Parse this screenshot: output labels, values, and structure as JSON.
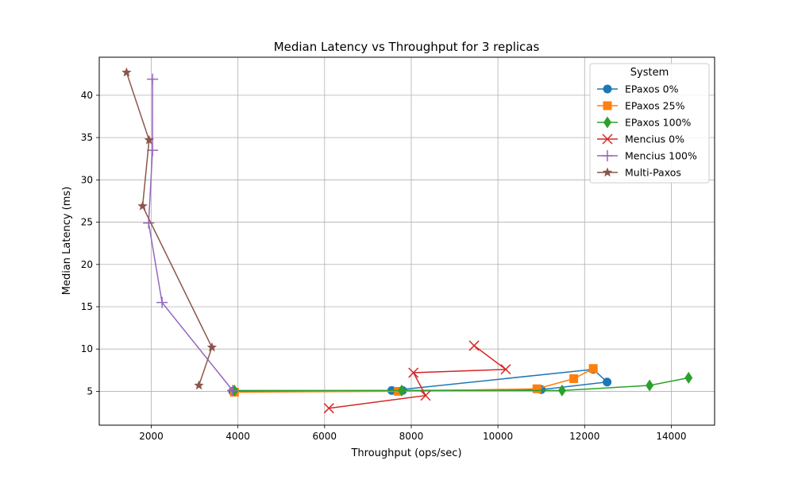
{
  "chart_data": {
    "type": "line",
    "title": "Median Latency vs Throughput for 3 replicas",
    "xlabel": "Throughput (ops/sec)",
    "ylabel": "Median Latency (ms)",
    "xlim": [
      800,
      15000
    ],
    "ylim": [
      1.0,
      44.5
    ],
    "xticks": [
      2000,
      4000,
      6000,
      8000,
      10000,
      12000,
      14000
    ],
    "yticks": [
      5,
      10,
      15,
      20,
      25,
      30,
      35,
      40
    ],
    "grid": true,
    "legend": {
      "title": "System",
      "position": "top-right"
    },
    "series": [
      {
        "name": "EPaxos 0%",
        "color": "#1f77b4",
        "marker": "circle",
        "points": [
          [
            3880,
            5.0
          ],
          [
            7550,
            5.1
          ],
          [
            12200,
            7.6
          ],
          [
            12520,
            6.1
          ],
          [
            11000,
            5.2
          ],
          [
            7800,
            5.1
          ]
        ]
      },
      {
        "name": "EPaxos 25%",
        "color": "#ff7f0e",
        "marker": "square",
        "points": [
          [
            3920,
            4.9
          ],
          [
            7700,
            5.0
          ],
          [
            10900,
            5.3
          ],
          [
            11750,
            6.5
          ],
          [
            12200,
            7.7
          ]
        ]
      },
      {
        "name": "EPaxos 100%",
        "color": "#2ca02c",
        "marker": "diamond",
        "points": [
          [
            3920,
            5.1
          ],
          [
            7780,
            5.1
          ],
          [
            11480,
            5.1
          ],
          [
            13500,
            5.7
          ],
          [
            14400,
            6.6
          ]
        ]
      },
      {
        "name": "Mencius 0%",
        "color": "#d62728",
        "marker": "x",
        "points": [
          [
            6100,
            3.0
          ],
          [
            8330,
            4.5
          ],
          [
            8050,
            7.2
          ],
          [
            10180,
            7.6
          ],
          [
            9450,
            10.4
          ]
        ]
      },
      {
        "name": "Mencius 100%",
        "color": "#9467bd",
        "marker": "plus",
        "points": [
          [
            3880,
            5.1
          ],
          [
            2250,
            15.5
          ],
          [
            1940,
            24.9
          ],
          [
            2030,
            33.5
          ],
          [
            2030,
            41.9
          ]
        ]
      },
      {
        "name": "Multi-Paxos",
        "color": "#8c564b",
        "marker": "star",
        "points": [
          [
            3100,
            5.7
          ],
          [
            3400,
            10.2
          ],
          [
            1800,
            26.9
          ],
          [
            1950,
            34.7
          ],
          [
            1430,
            42.7
          ]
        ]
      }
    ]
  }
}
